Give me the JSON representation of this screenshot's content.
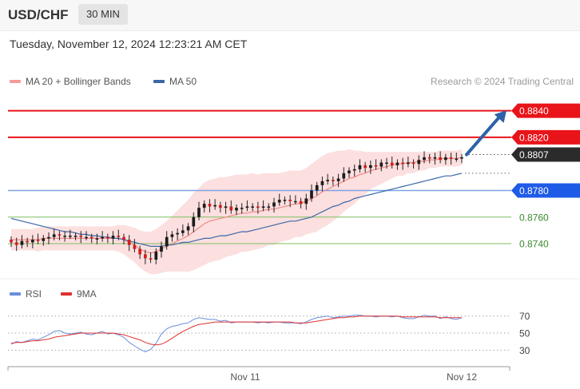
{
  "header": {
    "pair": "USD/CHF",
    "timeframe": "30 MIN",
    "datetime": "Tuesday, November 12, 2024 12:23:21 AM CET"
  },
  "main_legend": [
    {
      "label": "MA 20 + Bollinger Bands",
      "color": "#f59a9a"
    },
    {
      "label": "MA 50",
      "color": "#3c67a8"
    }
  ],
  "credit": "Research © 2024 Trading Central",
  "rsi_legend": [
    {
      "label": "RSI",
      "color": "#6a8fdc"
    },
    {
      "label": "9MA",
      "color": "#e03030"
    }
  ],
  "chart_data": [
    {
      "type": "candlestick",
      "ylim": [
        0.8716,
        0.8853
      ],
      "x_ticks": [
        "Nov 11",
        "Nov 12"
      ],
      "levels": [
        {
          "value": 0.884,
          "label": "0.8840",
          "kind": "resistance",
          "color": "#e8141a"
        },
        {
          "value": 0.882,
          "label": "0.8820",
          "kind": "resistance",
          "color": "#e8141a"
        },
        {
          "value": 0.8807,
          "label": "0.8807",
          "kind": "last",
          "color": "#2b2b2b"
        },
        {
          "value": 0.878,
          "label": "0.8780",
          "kind": "pivot",
          "color": "#1e5be6"
        },
        {
          "value": 0.876,
          "label": "0.8760",
          "kind": "support",
          "color": "#7cbf5f"
        },
        {
          "value": 0.874,
          "label": "0.8740",
          "kind": "support",
          "color": "#7cbf5f"
        }
      ],
      "forecast_arrow": {
        "from": 0.8807,
        "to": 0.884,
        "color": "#2e62a8"
      },
      "close": [
        0.8741,
        0.8739,
        0.8742,
        0.8741,
        0.8743,
        0.8742,
        0.8744,
        0.8745,
        0.8747,
        0.8746,
        0.8746,
        0.8746,
        0.8746,
        0.8745,
        0.8745,
        0.8744,
        0.8744,
        0.8745,
        0.8744,
        0.8746,
        0.8745,
        0.8743,
        0.8739,
        0.8736,
        0.8732,
        0.8729,
        0.8728,
        0.8734,
        0.8738,
        0.8745,
        0.8747,
        0.8748,
        0.875,
        0.8753,
        0.876,
        0.8767,
        0.877,
        0.8768,
        0.8769,
        0.8767,
        0.8768,
        0.8765,
        0.8767,
        0.8767,
        0.8768,
        0.8768,
        0.8767,
        0.8768,
        0.8768,
        0.8771,
        0.8773,
        0.8773,
        0.8772,
        0.8772,
        0.877,
        0.8774,
        0.878,
        0.8784,
        0.8787,
        0.8788,
        0.8787,
        0.8789,
        0.8793,
        0.8795,
        0.8796,
        0.8799,
        0.8797,
        0.8799,
        0.8798,
        0.8801,
        0.8801,
        0.8799,
        0.8801,
        0.88,
        0.8801,
        0.88,
        0.8803,
        0.8805,
        0.8804,
        0.8805,
        0.8803,
        0.8805,
        0.8804,
        0.8804,
        0.8805
      ],
      "ma20": [
        0.8743,
        0.8743,
        0.8743,
        0.8743,
        0.8743,
        0.8743,
        0.8744,
        0.8744,
        0.8744,
        0.8744,
        0.8744,
        0.8744,
        0.8744,
        0.8744,
        0.8744,
        0.8744,
        0.8744,
        0.8744,
        0.8744,
        0.8744,
        0.8744,
        0.8743,
        0.8741,
        0.8739,
        0.8736,
        0.8734,
        0.8733,
        0.8734,
        0.8736,
        0.8738,
        0.874,
        0.8742,
        0.8744,
        0.8746,
        0.8749,
        0.8752,
        0.8755,
        0.8757,
        0.8758,
        0.8759,
        0.876,
        0.8761,
        0.8762,
        0.8763,
        0.8763,
        0.8764,
        0.8764,
        0.8765,
        0.8766,
        0.8766,
        0.8767,
        0.8768,
        0.8769,
        0.877,
        0.877,
        0.8772,
        0.8774,
        0.8776,
        0.8779,
        0.8781,
        0.8783,
        0.8785,
        0.8787,
        0.8789,
        0.879,
        0.8792,
        0.8793,
        0.8795,
        0.8796,
        0.8797,
        0.8798,
        0.8799,
        0.88,
        0.88,
        0.8801,
        0.8801,
        0.8802,
        0.8802,
        0.8803,
        0.8803,
        0.8804,
        0.8804,
        0.8804,
        0.8804,
        0.8805
      ],
      "ma50": [
        0.8759,
        0.8758,
        0.8757,
        0.8756,
        0.8755,
        0.8754,
        0.8753,
        0.8752,
        0.8751,
        0.875,
        0.8749,
        0.8749,
        0.8748,
        0.8747,
        0.8747,
        0.8746,
        0.8746,
        0.8745,
        0.8745,
        0.8744,
        0.8744,
        0.8743,
        0.8742,
        0.8741,
        0.874,
        0.8739,
        0.8738,
        0.8738,
        0.8738,
        0.8739,
        0.8739,
        0.874,
        0.8741,
        0.8741,
        0.8742,
        0.8743,
        0.8744,
        0.8744,
        0.8745,
        0.8746,
        0.8746,
        0.8747,
        0.8748,
        0.8749,
        0.8749,
        0.875,
        0.8751,
        0.8752,
        0.8753,
        0.8754,
        0.8755,
        0.8756,
        0.8757,
        0.8757,
        0.8758,
        0.8759,
        0.876,
        0.8762,
        0.8764,
        0.8766,
        0.8768,
        0.8769,
        0.8771,
        0.8772,
        0.8774,
        0.8775,
        0.8776,
        0.8777,
        0.8778,
        0.8779,
        0.878,
        0.8781,
        0.8782,
        0.8783,
        0.8784,
        0.8785,
        0.8786,
        0.8787,
        0.8788,
        0.8789,
        0.879,
        0.8791,
        0.8791,
        0.8792,
        0.8793
      ],
      "band_width": [
        0.0008,
        0.0008,
        0.0008,
        0.0008,
        0.0008,
        0.0009,
        0.0009,
        0.0009,
        0.0009,
        0.0009,
        0.0009,
        0.0009,
        0.0009,
        0.0009,
        0.0009,
        0.0009,
        0.0009,
        0.0009,
        0.0009,
        0.0009,
        0.001,
        0.0011,
        0.0012,
        0.0013,
        0.0014,
        0.0015,
        0.0016,
        0.0017,
        0.0018,
        0.0019,
        0.0021,
        0.0023,
        0.0025,
        0.0027,
        0.0029,
        0.003,
        0.0031,
        0.0031,
        0.0031,
        0.0031,
        0.003,
        0.003,
        0.003,
        0.0029,
        0.0029,
        0.0029,
        0.0028,
        0.0028,
        0.0027,
        0.0027,
        0.0026,
        0.0026,
        0.0026,
        0.0025,
        0.0025,
        0.0025,
        0.0026,
        0.0027,
        0.0027,
        0.0027,
        0.0026,
        0.0025,
        0.0023,
        0.0022,
        0.002,
        0.0018,
        0.0016,
        0.0014,
        0.0013,
        0.0012,
        0.0011,
        0.001,
        0.0009,
        0.0009,
        0.0008,
        0.0008,
        0.0007,
        0.0007,
        0.0006,
        0.0006,
        0.0006,
        0.0006,
        0.0006,
        0.0006,
        0.0006
      ]
    },
    {
      "type": "line",
      "name": "RSI",
      "ylim": [
        20,
        80
      ],
      "y_ticks": [
        70,
        50,
        30
      ],
      "rsi": [
        37,
        40,
        39,
        41,
        43,
        42,
        45,
        48,
        52,
        53,
        50,
        49,
        50,
        51,
        49,
        48,
        50,
        52,
        49,
        50,
        48,
        45,
        39,
        35,
        31,
        28,
        31,
        38,
        49,
        55,
        58,
        59,
        61,
        62,
        66,
        68,
        67,
        66,
        66,
        64,
        65,
        62,
        63,
        63,
        63,
        63,
        62,
        63,
        62,
        63,
        63,
        62,
        62,
        62,
        61,
        63,
        66,
        68,
        69,
        70,
        68,
        69,
        70,
        70,
        71,
        71,
        70,
        70,
        69,
        70,
        70,
        69,
        70,
        68,
        67,
        67,
        69,
        71,
        70,
        70,
        67,
        69,
        67,
        66,
        68
      ],
      "ma9": [
        38,
        39,
        39,
        40,
        41,
        41,
        42,
        43,
        45,
        46,
        47,
        48,
        49,
        50,
        50,
        50,
        50,
        50,
        50,
        50,
        49,
        48,
        46,
        44,
        42,
        39,
        37,
        36,
        37,
        40,
        44,
        48,
        52,
        55,
        58,
        60,
        61,
        62,
        63,
        63,
        63,
        63,
        63,
        63,
        63,
        63,
        63,
        63,
        63,
        63,
        63,
        63,
        63,
        62,
        62,
        62,
        63,
        64,
        65,
        66,
        67,
        68,
        68,
        69,
        69,
        70,
        70,
        70,
        70,
        70,
        70,
        70,
        70,
        69,
        69,
        69,
        69,
        69,
        69,
        69,
        68,
        68,
        68,
        68,
        68
      ]
    }
  ]
}
